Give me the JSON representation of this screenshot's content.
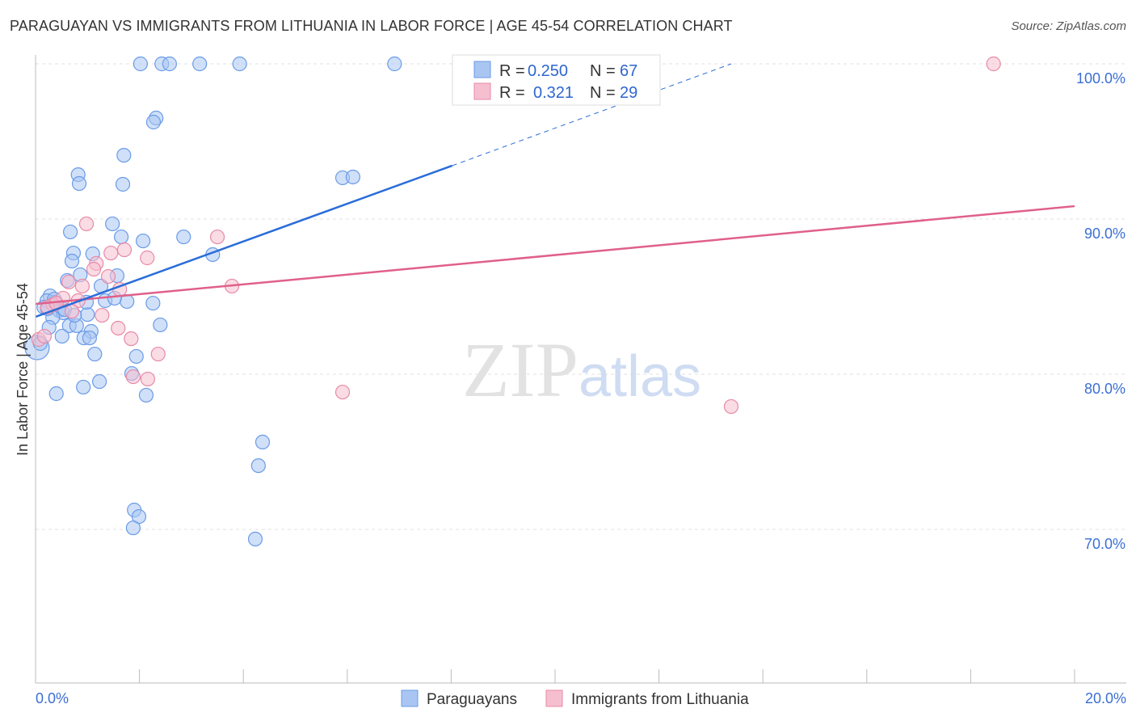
{
  "title": "PARAGUAYAN VS IMMIGRANTS FROM LITHUANIA IN LABOR FORCE | AGE 45-54 CORRELATION CHART",
  "source": "Source: ZipAtlas.com",
  "watermark": "ZIPatlas",
  "chart_data": {
    "type": "scatter",
    "title": "PARAGUAYAN VS IMMIGRANTS FROM LITHUANIA IN LABOR FORCE | AGE 45-54 CORRELATION CHART",
    "xlabel": "",
    "ylabel": "In Labor Force | Age 45-54",
    "xlim": [
      0,
      20
    ],
    "ylim": [
      60.1,
      100.6
    ],
    "x_tick_labels": [
      "0.0%",
      "20.0%"
    ],
    "y_ticks": [
      100,
      90,
      80,
      70
    ],
    "y_tick_labels": [
      "100.0%",
      "90.0%",
      "80.0%",
      "70.0%"
    ],
    "grid": true,
    "legend_placement": "top-center",
    "legend": [
      {
        "r_label": "R =",
        "r": "0.250",
        "n_label": "N =",
        "n": "67"
      },
      {
        "r_label": "R =",
        "r": "0.321",
        "n_label": "N =",
        "n": "29"
      }
    ],
    "series": [
      {
        "name": "Paraguayans",
        "color": "#6b9be8",
        "fill": "#a9c6f2",
        "line_color": "#2a6dd9",
        "trend": {
          "x0": 0,
          "y0": 83.7,
          "x1": 8.02,
          "y1": 93.44,
          "dash_to_x": 13.39,
          "dash_to_y": 100
        },
        "points": [
          [
            2.02,
            100
          ],
          [
            2.43,
            100
          ],
          [
            2.58,
            100
          ],
          [
            3.16,
            100
          ],
          [
            3.93,
            100
          ],
          [
            6.91,
            100
          ],
          [
            2.32,
            96.51
          ],
          [
            2.27,
            96.25
          ],
          [
            1.7,
            94.11
          ],
          [
            0.82,
            92.86
          ],
          [
            0.84,
            92.29
          ],
          [
            1.68,
            92.24
          ],
          [
            5.91,
            92.66
          ],
          [
            6.11,
            92.71
          ],
          [
            1.48,
            89.69
          ],
          [
            0.67,
            89.17
          ],
          [
            1.65,
            88.85
          ],
          [
            2.07,
            88.59
          ],
          [
            2.85,
            88.85
          ],
          [
            0.73,
            87.81
          ],
          [
            1.1,
            87.76
          ],
          [
            3.41,
            87.71
          ],
          [
            0.7,
            87.29
          ],
          [
            1.57,
            86.35
          ],
          [
            0.86,
            86.41
          ],
          [
            0.61,
            86.04
          ],
          [
            1.26,
            85.68
          ],
          [
            0.28,
            85.05
          ],
          [
            0.22,
            84.74
          ],
          [
            0.37,
            84.64
          ],
          [
            0.16,
            84.32
          ],
          [
            0.45,
            84.11
          ],
          [
            0.53,
            83.96
          ],
          [
            1.0,
            83.85
          ],
          [
            1.34,
            84.74
          ],
          [
            1.76,
            84.69
          ],
          [
            2.26,
            84.58
          ],
          [
            1.52,
            84.9
          ],
          [
            0.33,
            83.65
          ],
          [
            0.65,
            83.13
          ],
          [
            0.79,
            83.13
          ],
          [
            0.26,
            83.02
          ],
          [
            1.07,
            82.76
          ],
          [
            0.51,
            82.45
          ],
          [
            0.93,
            82.34
          ],
          [
            1.04,
            82.34
          ],
          [
            2.4,
            83.18
          ],
          [
            1.14,
            81.3
          ],
          [
            1.94,
            81.15
          ],
          [
            1.85,
            80.05
          ],
          [
            1.23,
            79.53
          ],
          [
            0.92,
            79.17
          ],
          [
            0.4,
            78.75
          ],
          [
            2.13,
            78.65
          ],
          [
            0.03,
            81.72
          ],
          [
            4.37,
            75.63
          ],
          [
            4.29,
            74.11
          ],
          [
            1.9,
            71.25
          ],
          [
            1.99,
            70.83
          ],
          [
            1.88,
            70.1
          ],
          [
            4.23,
            69.38
          ],
          [
            0.09,
            81.98
          ],
          [
            0.23,
            84.22
          ],
          [
            0.56,
            84.17
          ],
          [
            0.98,
            84.64
          ],
          [
            0.36,
            84.84
          ],
          [
            0.75,
            83.8
          ]
        ]
      },
      {
        "name": "Immigrants from Lithuania",
        "color": "#e88aa8",
        "fill": "#f6bfd0",
        "line_color": "#e0608a",
        "trend": {
          "x0": 0,
          "y0": 84.53,
          "x1": 20,
          "y1": 90.83
        },
        "points": [
          [
            18.44,
            100
          ],
          [
            0.98,
            89.69
          ],
          [
            3.5,
            88.85
          ],
          [
            1.71,
            88.02
          ],
          [
            2.15,
            87.5
          ],
          [
            1.45,
            87.81
          ],
          [
            1.17,
            87.14
          ],
          [
            1.12,
            86.77
          ],
          [
            1.4,
            86.3
          ],
          [
            0.64,
            85.94
          ],
          [
            0.9,
            85.68
          ],
          [
            3.78,
            85.68
          ],
          [
            1.62,
            85.47
          ],
          [
            0.53,
            84.9
          ],
          [
            0.82,
            84.74
          ],
          [
            0.34,
            84.48
          ],
          [
            0.23,
            84.32
          ],
          [
            0.7,
            84.06
          ],
          [
            1.28,
            83.8
          ],
          [
            1.59,
            82.97
          ],
          [
            1.84,
            82.29
          ],
          [
            2.36,
            81.3
          ],
          [
            1.88,
            79.84
          ],
          [
            2.16,
            79.69
          ],
          [
            5.91,
            78.85
          ],
          [
            13.39,
            77.92
          ],
          [
            0.06,
            82.24
          ],
          [
            0.17,
            82.45
          ],
          [
            0.4,
            84.58
          ]
        ]
      }
    ]
  }
}
